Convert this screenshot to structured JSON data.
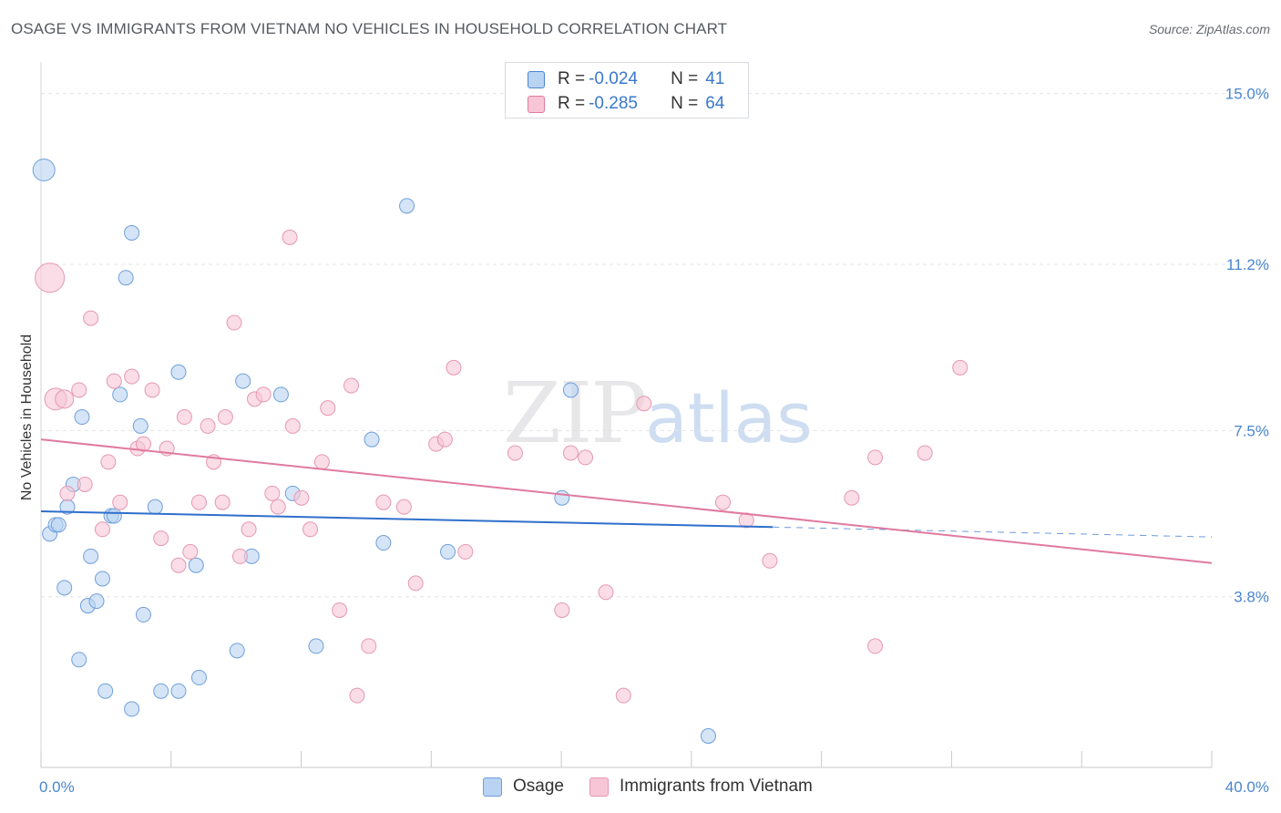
{
  "title": "OSAGE VS IMMIGRANTS FROM VIETNAM NO VEHICLES IN HOUSEHOLD CORRELATION CHART",
  "source": "Source: ZipAtlas.com",
  "watermark": {
    "zip": "ZIP",
    "atlas": "atlas"
  },
  "legend": {
    "rows": [
      {
        "r_label": "R = ",
        "r_value": "-0.024",
        "n_label": "N = ",
        "n_value": "41",
        "color": "#4a86d0",
        "fill": "#b9d3f2"
      },
      {
        "r_label": "R = ",
        "r_value": "-0.285",
        "n_label": "N = ",
        "n_value": "64",
        "color": "#e07aa0",
        "fill": "#f6c6d6"
      }
    ]
  },
  "bottom_legend": [
    {
      "label": "Osage",
      "fill": "#b9d3f2",
      "stroke": "#6e9fdb"
    },
    {
      "label": "Immigrants from Vietnam",
      "fill": "#f6c6d6",
      "stroke": "#e697b2"
    }
  ],
  "chart_data": {
    "type": "scatter",
    "title": "OSAGE VS IMMIGRANTS FROM VIETNAM NO VEHICLES IN HOUSEHOLD CORRELATION CHART",
    "xlabel": "",
    "ylabel": "No Vehicles in Household",
    "xlim": [
      0,
      40
    ],
    "ylim": [
      0,
      15.5
    ],
    "x_tick_labels": [
      "0.0%",
      "40.0%"
    ],
    "y_ticks": [
      3.8,
      7.5,
      11.2,
      15.0
    ],
    "y_tick_labels": [
      "3.8%",
      "7.5%",
      "11.2%",
      "15.0%"
    ],
    "grid": true,
    "legend_position": "top-center",
    "series": [
      {
        "name": "Osage",
        "color": "#6e9fdb",
        "fill": "#b9d3f2",
        "line_color": "#2f6fcc",
        "trend": {
          "x0": 0,
          "y0": 5.7,
          "x1": 25,
          "y1": 5.35,
          "dash_x1": 40,
          "dash_y1": 5.13
        },
        "points": [
          [
            0.1,
            13.3,
            12
          ],
          [
            0.3,
            5.2,
            8
          ],
          [
            0.5,
            5.4,
            8
          ],
          [
            0.6,
            5.4,
            8
          ],
          [
            0.8,
            4.0,
            8
          ],
          [
            0.9,
            5.8,
            8
          ],
          [
            1.1,
            6.3,
            8
          ],
          [
            1.3,
            2.4,
            8
          ],
          [
            1.4,
            7.8,
            8
          ],
          [
            1.6,
            3.6,
            8
          ],
          [
            1.7,
            4.7,
            8
          ],
          [
            1.9,
            3.7,
            8
          ],
          [
            2.1,
            4.2,
            8
          ],
          [
            2.2,
            1.7,
            8
          ],
          [
            2.4,
            5.6,
            8
          ],
          [
            2.5,
            5.6,
            8
          ],
          [
            2.7,
            8.3,
            8
          ],
          [
            2.9,
            10.9,
            8
          ],
          [
            3.1,
            1.3,
            8
          ],
          [
            3.1,
            11.9,
            8
          ],
          [
            3.4,
            7.6,
            8
          ],
          [
            3.5,
            3.4,
            8
          ],
          [
            3.9,
            5.8,
            8
          ],
          [
            4.1,
            1.7,
            8
          ],
          [
            4.7,
            1.7,
            8
          ],
          [
            4.7,
            8.8,
            8
          ],
          [
            5.3,
            4.5,
            8
          ],
          [
            5.4,
            2.0,
            8
          ],
          [
            6.7,
            2.6,
            8
          ],
          [
            6.9,
            8.6,
            8
          ],
          [
            7.2,
            4.7,
            8
          ],
          [
            8.2,
            8.3,
            8
          ],
          [
            8.6,
            6.1,
            8
          ],
          [
            9.4,
            2.7,
            8
          ],
          [
            11.3,
            7.3,
            8
          ],
          [
            11.7,
            5.0,
            8
          ],
          [
            12.5,
            12.5,
            8
          ],
          [
            13.9,
            4.8,
            8
          ],
          [
            17.8,
            6.0,
            8
          ],
          [
            18.1,
            8.4,
            8
          ],
          [
            22.8,
            0.7,
            8
          ]
        ]
      },
      {
        "name": "Immigrants from Vietnam",
        "color": "#e697b2",
        "fill": "#f6c6d6",
        "line_color": "#e07aa0",
        "trend": {
          "x0": 0,
          "y0": 7.3,
          "x1": 40,
          "y1": 4.55
        },
        "points": [
          [
            0.3,
            10.9,
            16
          ],
          [
            0.5,
            8.2,
            12
          ],
          [
            0.8,
            8.2,
            10
          ],
          [
            0.9,
            6.1,
            8
          ],
          [
            1.3,
            8.4,
            8
          ],
          [
            1.5,
            6.3,
            8
          ],
          [
            1.7,
            10.0,
            8
          ],
          [
            2.1,
            5.3,
            8
          ],
          [
            2.3,
            6.8,
            8
          ],
          [
            2.5,
            8.6,
            8
          ],
          [
            2.7,
            5.9,
            8
          ],
          [
            3.1,
            8.7,
            8
          ],
          [
            3.3,
            7.1,
            8
          ],
          [
            3.5,
            7.2,
            8
          ],
          [
            3.8,
            8.4,
            8
          ],
          [
            4.1,
            5.1,
            8
          ],
          [
            4.3,
            7.1,
            8
          ],
          [
            4.7,
            4.5,
            8
          ],
          [
            4.9,
            7.8,
            8
          ],
          [
            5.1,
            4.8,
            8
          ],
          [
            5.4,
            5.9,
            8
          ],
          [
            5.7,
            7.6,
            8
          ],
          [
            5.9,
            6.8,
            8
          ],
          [
            6.2,
            5.9,
            8
          ],
          [
            6.3,
            7.8,
            8
          ],
          [
            6.6,
            9.9,
            8
          ],
          [
            6.8,
            4.7,
            8
          ],
          [
            7.1,
            5.3,
            8
          ],
          [
            7.3,
            8.2,
            8
          ],
          [
            7.6,
            8.3,
            8
          ],
          [
            7.9,
            6.1,
            8
          ],
          [
            8.1,
            5.8,
            8
          ],
          [
            8.5,
            11.8,
            8
          ],
          [
            8.6,
            7.6,
            8
          ],
          [
            8.9,
            6.0,
            8
          ],
          [
            9.2,
            5.3,
            8
          ],
          [
            9.6,
            6.8,
            8
          ],
          [
            9.8,
            8.0,
            8
          ],
          [
            10.2,
            3.5,
            8
          ],
          [
            10.6,
            8.5,
            8
          ],
          [
            11.2,
            2.7,
            8
          ],
          [
            11.7,
            5.9,
            8
          ],
          [
            12.4,
            5.8,
            8
          ],
          [
            12.8,
            4.1,
            8
          ],
          [
            13.5,
            7.2,
            8
          ],
          [
            13.8,
            7.3,
            8
          ],
          [
            14.1,
            8.9,
            8
          ],
          [
            14.5,
            4.8,
            8
          ],
          [
            16.2,
            7.0,
            8
          ],
          [
            17.8,
            3.5,
            8
          ],
          [
            18.1,
            7.0,
            8
          ],
          [
            18.6,
            6.9,
            8
          ],
          [
            19.3,
            3.9,
            8
          ],
          [
            19.9,
            1.6,
            8
          ],
          [
            20.6,
            8.1,
            8
          ],
          [
            23.3,
            5.9,
            8
          ],
          [
            24.1,
            5.5,
            8
          ],
          [
            24.9,
            4.6,
            8
          ],
          [
            27.7,
            6.0,
            8
          ],
          [
            28.5,
            6.9,
            8
          ],
          [
            28.5,
            2.7,
            8
          ],
          [
            30.2,
            7.0,
            8
          ],
          [
            31.4,
            8.9,
            8
          ],
          [
            10.8,
            1.6,
            8
          ]
        ]
      }
    ]
  }
}
